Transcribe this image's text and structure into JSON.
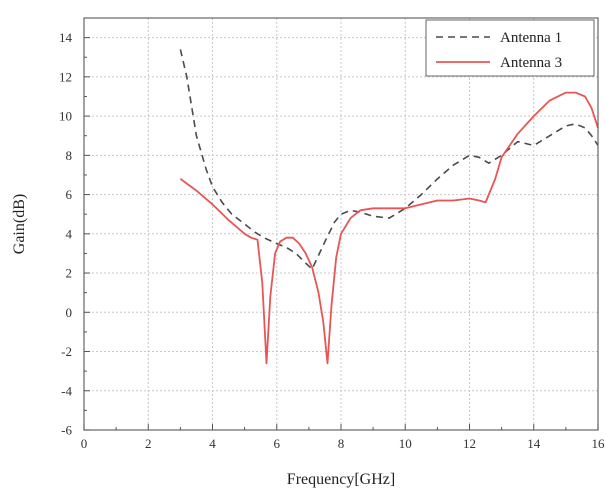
{
  "chart_data": {
    "type": "line",
    "title": "",
    "xlabel": "Frequency[GHz]",
    "ylabel": "Gain(dB)",
    "xlim": [
      0,
      16
    ],
    "ylim": [
      -6,
      15
    ],
    "x_ticks": [
      0,
      2,
      4,
      6,
      8,
      10,
      12,
      14,
      16
    ],
    "y_ticks": [
      -6,
      -4,
      -2,
      0,
      2,
      4,
      6,
      8,
      10,
      12,
      14
    ],
    "x_tick_labels": [
      "0",
      "2",
      "4",
      "6",
      "8",
      "10",
      "12",
      "14",
      "16"
    ],
    "y_tick_labels": [
      "-6",
      "-4",
      "-2",
      "0",
      "2",
      "4",
      "6",
      "8",
      "10",
      "12",
      "14"
    ],
    "grid": true,
    "legend_position": "top-right",
    "series": [
      {
        "name": "Antenna 1",
        "color": "#4a4a4a",
        "style": "dashed",
        "x": [
          3.0,
          3.2,
          3.5,
          3.8,
          4.0,
          4.3,
          4.6,
          5.0,
          5.3,
          5.6,
          6.0,
          6.3,
          6.6,
          6.9,
          7.1,
          7.3,
          7.5,
          7.8,
          8.0,
          8.3,
          8.6,
          9.0,
          9.5,
          10.0,
          10.5,
          11.0,
          11.5,
          12.0,
          12.3,
          12.6,
          13.0,
          13.5,
          14.0,
          14.5,
          15.0,
          15.3,
          15.6,
          15.8,
          16.0
        ],
        "y": [
          13.4,
          12.0,
          9.0,
          7.3,
          6.4,
          5.6,
          5.0,
          4.5,
          4.1,
          3.8,
          3.5,
          3.3,
          3.0,
          2.5,
          2.2,
          2.9,
          3.6,
          4.6,
          5.0,
          5.2,
          5.1,
          4.9,
          4.8,
          5.3,
          6.0,
          6.8,
          7.5,
          8.0,
          7.9,
          7.6,
          8.0,
          8.7,
          8.5,
          9.0,
          9.5,
          9.6,
          9.4,
          9.0,
          8.5
        ]
      },
      {
        "name": "Antenna 3",
        "color": "#e85555",
        "style": "solid",
        "x": [
          3.0,
          3.5,
          4.0,
          4.5,
          5.0,
          5.2,
          5.4,
          5.55,
          5.68,
          5.8,
          5.95,
          6.1,
          6.3,
          6.5,
          6.7,
          6.9,
          7.1,
          7.3,
          7.45,
          7.58,
          7.7,
          7.85,
          8.0,
          8.3,
          8.6,
          9.0,
          9.5,
          10.0,
          10.5,
          11.0,
          11.5,
          12.0,
          12.3,
          12.5,
          12.8,
          13.0,
          13.5,
          14.0,
          14.5,
          15.0,
          15.3,
          15.6,
          15.8,
          16.0
        ],
        "y": [
          6.8,
          6.2,
          5.5,
          4.7,
          4.0,
          3.8,
          3.7,
          1.5,
          -2.6,
          0.8,
          3.0,
          3.6,
          3.8,
          3.8,
          3.5,
          3.0,
          2.3,
          1.0,
          -0.5,
          -2.6,
          0.3,
          2.8,
          4.0,
          4.8,
          5.2,
          5.3,
          5.3,
          5.3,
          5.5,
          5.7,
          5.7,
          5.8,
          5.7,
          5.6,
          6.8,
          7.9,
          9.1,
          10.0,
          10.8,
          11.2,
          11.2,
          11.0,
          10.4,
          9.4
        ]
      }
    ]
  }
}
